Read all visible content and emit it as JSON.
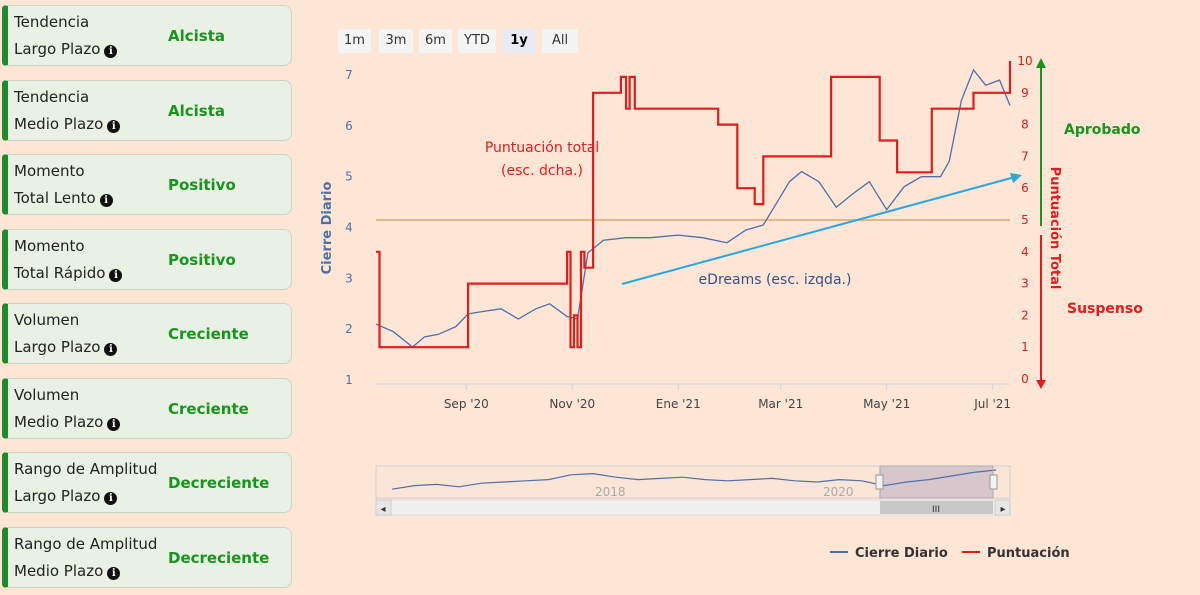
{
  "cards": [
    {
      "l1": "Tendencia",
      "l2": "Largo Plazo",
      "value": "Alcista"
    },
    {
      "l1": "Tendencia",
      "l2": "Medio Plazo",
      "value": "Alcista"
    },
    {
      "l1": "Momento",
      "l2": "Total Lento",
      "value": "Positivo"
    },
    {
      "l1": "Momento",
      "l2": "Total Rápido",
      "value": "Positivo"
    },
    {
      "l1": "Volumen",
      "l2": "Largo Plazo",
      "value": "Creciente"
    },
    {
      "l1": "Volumen",
      "l2": "Medio Plazo",
      "value": "Creciente"
    },
    {
      "l1": "Rango de Amplitud",
      "l2": "Largo Plazo",
      "value": "Decreciente"
    },
    {
      "l1": "Rango de Amplitud",
      "l2": "Medio Plazo",
      "value": "Decreciente"
    }
  ],
  "info_icon": "i",
  "range_buttons": [
    "1m",
    "3m",
    "6m",
    "YTD",
    "1y",
    "All"
  ],
  "selected_range": "1y",
  "navigator": {
    "labels": [
      "2018",
      "2020"
    ],
    "scroll_grip": "III",
    "left_arrow": "◂",
    "right_arrow": "▸"
  },
  "colors": {
    "price": "#4f6fa8",
    "score": "#e01e1e",
    "threshold": "#e8b48a",
    "trend": "#2aa7e0",
    "positive": "#17951e",
    "negative": "#e01e1e"
  },
  "chart_data": {
    "type": "line",
    "x_ticks": [
      "Sep '20",
      "Nov '20",
      "Ene '21",
      "Mar '21",
      "May '21",
      "Jul '21"
    ],
    "y_left": {
      "label": "Cierre Diario",
      "ticks": [
        "1",
        "2",
        "3",
        "4",
        "5",
        "6",
        "7"
      ],
      "range": [
        1,
        7
      ]
    },
    "y_right": {
      "label": "Puntuación Total",
      "ticks": [
        "0",
        "1",
        "2",
        "3",
        "4",
        "5",
        "6",
        "7",
        "8",
        "9",
        "10"
      ],
      "range": [
        0,
        10
      ]
    },
    "threshold": 5,
    "annotations": {
      "score_title_1": "Puntuación total",
      "score_title_2": "(esc. dcha.)",
      "price_title": "eDreams (esc. izqda.)",
      "approved": "Aprobado",
      "failed": "Suspenso"
    },
    "legend": [
      "Cierre Diario",
      "Puntuación"
    ],
    "series": [
      {
        "name": "Cierre Diario",
        "x": [
          "2020-07-10",
          "2020-07-20",
          "2020-07-31",
          "2020-08-07",
          "2020-08-15",
          "2020-08-25",
          "2020-09-01",
          "2020-09-10",
          "2020-09-20",
          "2020-09-30",
          "2020-10-10",
          "2020-10-18",
          "2020-10-28",
          "2020-11-03",
          "2020-11-09",
          "2020-11-18",
          "2020-12-01",
          "2020-12-15",
          "2020-12-31",
          "2021-01-14",
          "2021-01-28",
          "2021-02-08",
          "2021-02-18",
          "2021-02-26",
          "2021-03-05",
          "2021-03-12",
          "2021-03-22",
          "2021-04-01",
          "2021-04-10",
          "2021-04-20",
          "2021-04-30",
          "2021-05-10",
          "2021-05-20",
          "2021-05-31",
          "2021-06-05",
          "2021-06-12",
          "2021-06-19",
          "2021-06-26",
          "2021-07-04",
          "2021-07-10"
        ],
        "values": [
          2.1,
          1.95,
          1.65,
          1.85,
          1.9,
          2.05,
          2.3,
          2.35,
          2.4,
          2.2,
          2.4,
          2.5,
          2.25,
          2.2,
          3.5,
          3.75,
          3.8,
          3.8,
          3.85,
          3.8,
          3.7,
          3.95,
          4.05,
          4.5,
          4.9,
          5.1,
          4.9,
          4.4,
          4.65,
          4.9,
          4.35,
          4.8,
          5.0,
          5.0,
          5.3,
          6.5,
          7.1,
          6.8,
          6.9,
          6.4
        ]
      },
      {
        "name": "Puntuación",
        "x": [
          "2020-07-10",
          "2020-07-12",
          "2020-07-31",
          "2020-09-01",
          "2020-10-28",
          "2020-10-30",
          "2020-11-01",
          "2020-11-03",
          "2020-11-05",
          "2020-11-07",
          "2020-11-12",
          "2020-11-22",
          "2020-11-28",
          "2020-12-01",
          "2020-12-03",
          "2020-12-06",
          "2021-01-23",
          "2021-02-03",
          "2021-02-13",
          "2021-02-18",
          "2021-03-29",
          "2021-04-26",
          "2021-05-06",
          "2021-05-26",
          "2021-06-19",
          "2021-07-10"
        ],
        "values": [
          4,
          1,
          1,
          3,
          4,
          1,
          2,
          1,
          4,
          3.5,
          9,
          9,
          9.5,
          8.5,
          9.5,
          8.5,
          8,
          6,
          5.5,
          7,
          9.5,
          7.5,
          6.5,
          8.5,
          9,
          10
        ]
      }
    ]
  }
}
